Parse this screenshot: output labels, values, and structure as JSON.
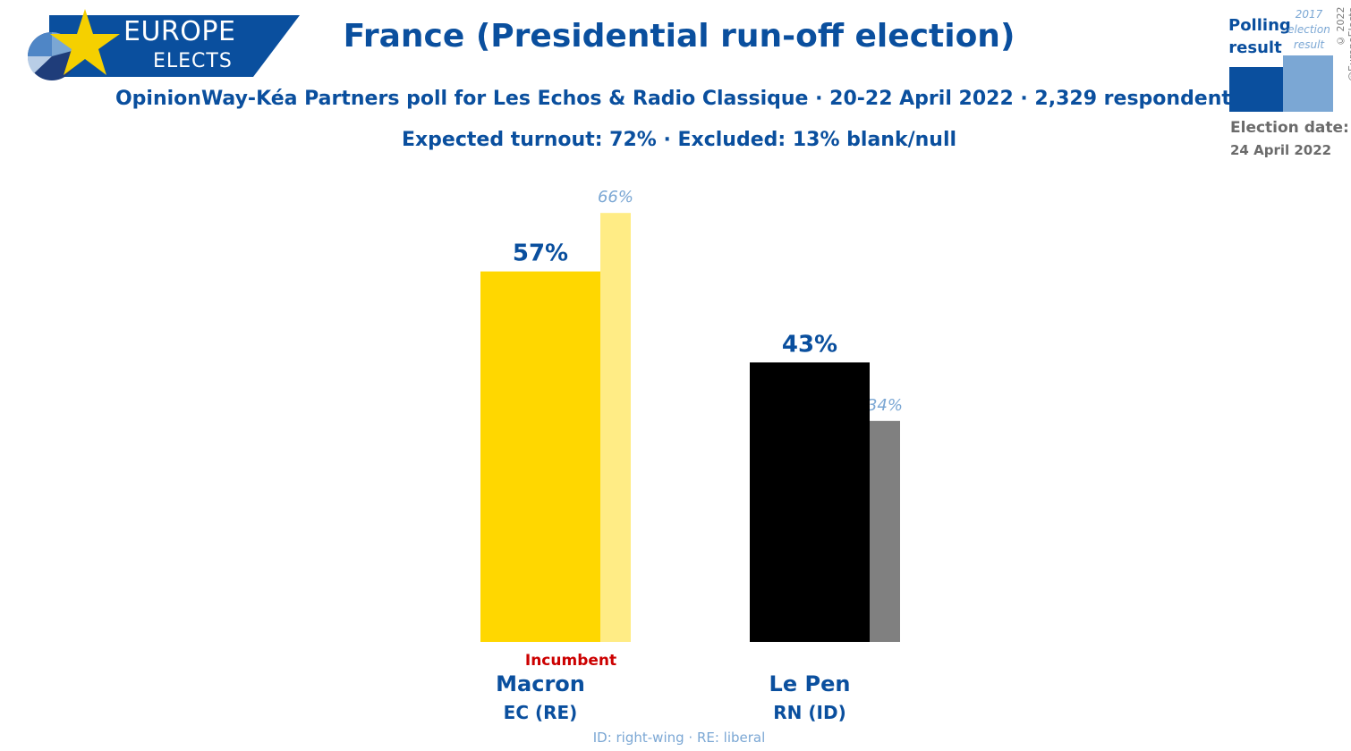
{
  "brand": {
    "line1": "EUROPE",
    "line2": "ELECTS",
    "colors": {
      "banner": "#0a4f9e",
      "star": "#f5d000"
    }
  },
  "header": {
    "title": "France (Presidential run-off election)",
    "subtitle": "OpinionWay-Kéa Partners poll for Les Echos & Radio Classique · 20-22 April 2022 · 2,329 respondents",
    "subtitle2": "Expected turnout: 72% · Excluded: 13% blank/null"
  },
  "legend": {
    "polling_label": "Polling result",
    "previous_label": "2017 election result",
    "election_date_label": "Election date:",
    "election_date": "24 April 2022",
    "copyright": "© 2022 @EuropeElects"
  },
  "chart_data": {
    "type": "bar",
    "categories": [
      "Macron",
      "Le Pen"
    ],
    "parties": [
      "EC (RE)",
      "RN (ID)"
    ],
    "series": [
      {
        "name": "Polling result",
        "values": [
          57,
          43
        ],
        "labels": [
          "57%",
          "43%"
        ],
        "colors": [
          "#ffd700",
          "#000000"
        ]
      },
      {
        "name": "2017 election result",
        "values": [
          66,
          34
        ],
        "labels": [
          "66%",
          "34%"
        ],
        "colors": [
          "#ffec85",
          "#808080"
        ]
      }
    ],
    "annotations": {
      "incumbent": "Incumbent"
    },
    "ylim": [
      0,
      100
    ],
    "grid": false
  },
  "footnote": "ID: right-wing · RE: liberal"
}
